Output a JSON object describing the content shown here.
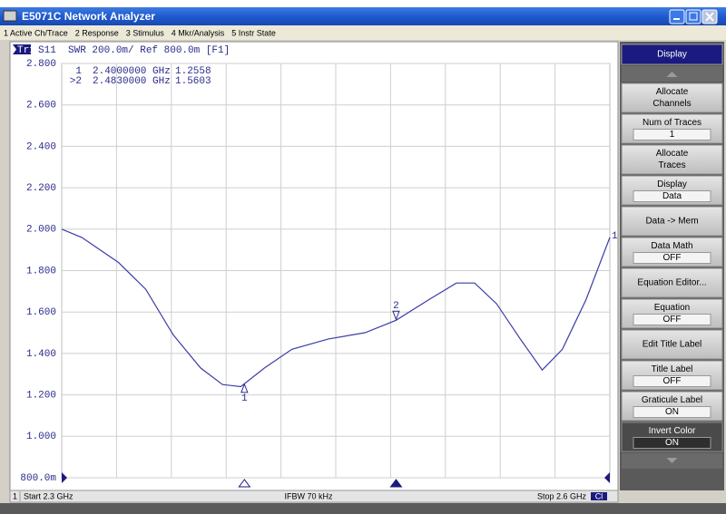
{
  "window": {
    "title": "E5071C Network Analyzer",
    "menu": [
      "1 Active Ch/Trace",
      "2 Response",
      "3 Stimulus",
      "4 Mkr/Analysis",
      "5 Instr State"
    ]
  },
  "chart_data": {
    "type": "line",
    "trace_id": "Tr1",
    "header": "S11  SWR 200.0m/ Ref 800.0m [F1]",
    "x": [
      2.3,
      2.311,
      2.331,
      2.346,
      2.361,
      2.376,
      2.388,
      2.398,
      2.411,
      2.426,
      2.446,
      2.466,
      2.483,
      2.501,
      2.516,
      2.526,
      2.538,
      2.551,
      2.563,
      2.574,
      2.587,
      2.6
    ],
    "xlim": [
      2.3,
      2.6
    ],
    "ylim": [
      0.8,
      2.8
    ],
    "yticks": [
      {
        "value": 0.8,
        "label": "800.0m"
      },
      {
        "value": 1.0,
        "label": "1.000"
      },
      {
        "value": 1.2,
        "label": "1.200"
      },
      {
        "value": 1.4,
        "label": "1.400"
      },
      {
        "value": 1.6,
        "label": "1.600"
      },
      {
        "value": 1.8,
        "label": "1.800"
      },
      {
        "value": 2.0,
        "label": "2.000"
      },
      {
        "value": 2.2,
        "label": "2.200"
      },
      {
        "value": 2.4,
        "label": "2.400"
      },
      {
        "value": 2.6,
        "label": "2.600"
      },
      {
        "value": 2.8,
        "label": "2.800"
      }
    ],
    "grid": true,
    "series": [
      {
        "name": "1",
        "color": "#3c3ca8",
        "values": [
          2.0,
          1.96,
          1.84,
          1.71,
          1.49,
          1.33,
          1.25,
          1.24,
          1.33,
          1.42,
          1.47,
          1.5,
          1.56,
          1.66,
          1.74,
          1.74,
          1.64,
          1.47,
          1.32,
          1.42,
          1.66,
          1.96
        ]
      }
    ],
    "markers": [
      {
        "id": "1",
        "readout_id": "1",
        "x": 2.4,
        "y": 1.2558,
        "x_label": "2.4000000 GHz",
        "y_label": "1.2558",
        "side": "below"
      },
      {
        "id": "2",
        "readout_id": ">2",
        "x": 2.483,
        "y": 1.5603,
        "x_label": "2.4830000 GHz",
        "y_label": "1.5603",
        "side": "above"
      }
    ]
  },
  "status": {
    "channel": "1",
    "start": "Start 2.3 GHz",
    "ifbw": "IFBW 70 kHz",
    "stop": "Stop 2.6 GHz",
    "cal": "Cl"
  },
  "softkeys": {
    "title": "Display",
    "buttons": [
      {
        "lines": [
          "Allocate",
          "Channels"
        ]
      },
      {
        "lines": [
          "Num of Traces"
        ],
        "value": "1"
      },
      {
        "lines": [
          "Allocate",
          "Traces"
        ]
      },
      {
        "lines": [
          "Display"
        ],
        "value": "Data"
      },
      {
        "lines": [
          "Data -> Mem"
        ]
      },
      {
        "lines": [
          "Data Math"
        ],
        "value": "OFF"
      },
      {
        "lines": [
          "Equation Editor..."
        ]
      },
      {
        "lines": [
          "Equation"
        ],
        "value": "OFF"
      },
      {
        "lines": [
          "Edit Title Label"
        ]
      },
      {
        "lines": [
          "Title Label"
        ],
        "value": "OFF"
      },
      {
        "lines": [
          "Graticule Label"
        ],
        "value": "ON"
      },
      {
        "lines": [
          "Invert Color"
        ],
        "value": "ON",
        "dark": true
      }
    ]
  }
}
